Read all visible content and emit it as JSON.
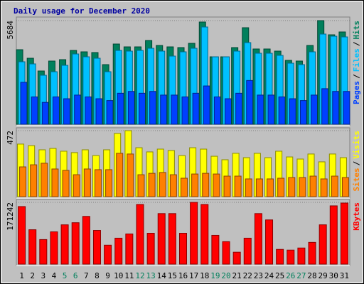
{
  "chart_data": [
    {
      "type": "bar",
      "title": "Daily usage for December 2020",
      "ylim": [
        0,
        5684
      ],
      "yticks": [
        5684
      ],
      "legend_separator": "/",
      "series": [
        {
          "name": "Hits",
          "color": "#00805c",
          "values": [
            4088,
            3620,
            2920,
            3465,
            3543,
            4049,
            3971,
            3932,
            3270,
            4399,
            4243,
            4243,
            4594,
            4321,
            4243,
            4204,
            4438,
            5606,
            3698,
            3698,
            4204,
            5294,
            4127,
            4127,
            4010,
            3504,
            3465,
            4321,
            5684,
            4905,
            5061
          ]
        },
        {
          "name": "Files",
          "color": "#00c0ff",
          "values": [
            3426,
            3309,
            2686,
            2881,
            3231,
            3854,
            3698,
            3620,
            2881,
            4049,
            4010,
            4049,
            4166,
            4010,
            3737,
            3971,
            4166,
            5333,
            3698,
            3698,
            4010,
            4477,
            3893,
            3893,
            3776,
            3348,
            3270,
            3971,
            4944,
            4827,
            4788
          ]
        },
        {
          "name": "Pages",
          "color": "#0040ff",
          "values": [
            2300,
            1500,
            1200,
            1500,
            1400,
            1600,
            1500,
            1400,
            1300,
            1700,
            1800,
            1700,
            1800,
            1600,
            1600,
            1500,
            1700,
            2100,
            1500,
            1400,
            1700,
            2400,
            1600,
            1600,
            1500,
            1400,
            1300,
            1600,
            1950,
            1800,
            1800
          ]
        }
      ]
    },
    {
      "type": "bar",
      "ylim": [
        0,
        472
      ],
      "yticks": [
        472
      ],
      "legend_separator": "/",
      "series": [
        {
          "name": "Visits",
          "color": "#ffff00",
          "values": [
            376,
            365,
            335,
            345,
            325,
            315,
            335,
            294,
            335,
            452,
            472,
            350,
            320,
            340,
            330,
            294,
            350,
            340,
            289,
            264,
            310,
            279,
            310,
            279,
            325,
            284,
            269,
            305,
            249,
            305,
            279
          ]
        },
        {
          "name": "Sites",
          "color": "#ff8000",
          "values": [
            213,
            228,
            239,
            198,
            188,
            157,
            198,
            193,
            193,
            310,
            305,
            157,
            167,
            173,
            157,
            132,
            162,
            167,
            162,
            147,
            147,
            127,
            127,
            127,
            132,
            137,
            137,
            147,
            127,
            147,
            137
          ]
        }
      ]
    },
    {
      "type": "bar",
      "ylim": [
        0,
        171242
      ],
      "yticks": [
        171242
      ],
      "categories": [
        "1",
        "2",
        "3",
        "4",
        "5",
        "6",
        "7",
        "8",
        "9",
        "10",
        "11",
        "12",
        "13",
        "14",
        "15",
        "16",
        "17",
        "18",
        "19",
        "20",
        "21",
        "22",
        "23",
        "24",
        "25",
        "26",
        "27",
        "28",
        "29",
        "30",
        "31"
      ],
      "category_colors": [
        "#000000",
        "#000000",
        "#000000",
        "#000000",
        "#00805c",
        "#00805c",
        "#000000",
        "#000000",
        "#000000",
        "#000000",
        "#000000",
        "#00805c",
        "#00805c",
        "#000000",
        "#000000",
        "#000000",
        "#000000",
        "#000000",
        "#00805c",
        "#00805c",
        "#000000",
        "#000000",
        "#000000",
        "#000000",
        "#000000",
        "#00805c",
        "#00805c",
        "#000000",
        "#000000",
        "#000000",
        "#000000"
      ],
      "series": [
        {
          "name": "KBytes",
          "color": "#ff0000",
          "values": [
            159572,
            95354,
            68110,
            89516,
            108976,
            114814,
            132328,
            93408,
            52542,
            72002,
            83678,
            165410,
            85624,
            140112,
            140112,
            85624,
            171242,
            165410,
            79786,
            62272,
            33082,
            72002,
            140112,
            122598,
            40866,
            38920,
            44758,
            60326,
            108976,
            161518,
            169296
          ]
        }
      ]
    }
  ]
}
